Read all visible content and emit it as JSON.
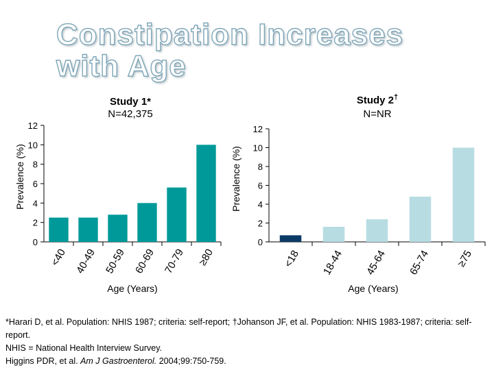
{
  "slide": {
    "title": "Constipation Increases with Age"
  },
  "footnotes": {
    "line1": "*Harari D, et al. Population: NHIS 1987; criteria: self-report; †Johanson JF, et al. Population: NHIS 1983-1987; criteria: self-report.",
    "line2": "NHIS = National Health Interview Survey.",
    "line3_prefix": "Higgins PDR, et al. ",
    "line3_journal": "Am J Gastroenterol.",
    "line3_suffix": " 2004;99:750-759."
  },
  "colors": {
    "study1_bar": "#009999",
    "study2_bar": "#b7dde3",
    "study2_highlight_bar": "#0b3a66"
  },
  "chart_data": [
    {
      "type": "bar",
      "title": "Study 1*",
      "subtitle": "N=42,375",
      "xlabel": "Age (Years)",
      "ylabel": "Prevalence (%)",
      "ylim": [
        0,
        12
      ],
      "yticks": [
        "0",
        "2",
        "4",
        "6",
        "8",
        "10",
        "12"
      ],
      "categories": [
        "<40",
        "40-49",
        "50-59",
        "60-69",
        "70-79",
        "≥80"
      ],
      "values": [
        2.5,
        2.5,
        2.8,
        4.0,
        5.6,
        10.0
      ],
      "grid": false,
      "legend": "none"
    },
    {
      "type": "bar",
      "title": "Study 2",
      "title_superscript": "†",
      "subtitle": "N=NR",
      "xlabel": "Age (Years)",
      "ylabel": "Prevalence (%)",
      "ylim": [
        0,
        12
      ],
      "yticks": [
        "0",
        "2",
        "4",
        "6",
        "8",
        "10",
        "12"
      ],
      "categories": [
        "<18",
        "18-44",
        "45-64",
        "65-74",
        "≥75"
      ],
      "values": [
        0.7,
        1.6,
        2.4,
        4.8,
        10.0
      ],
      "grid": false,
      "legend": "none"
    }
  ]
}
